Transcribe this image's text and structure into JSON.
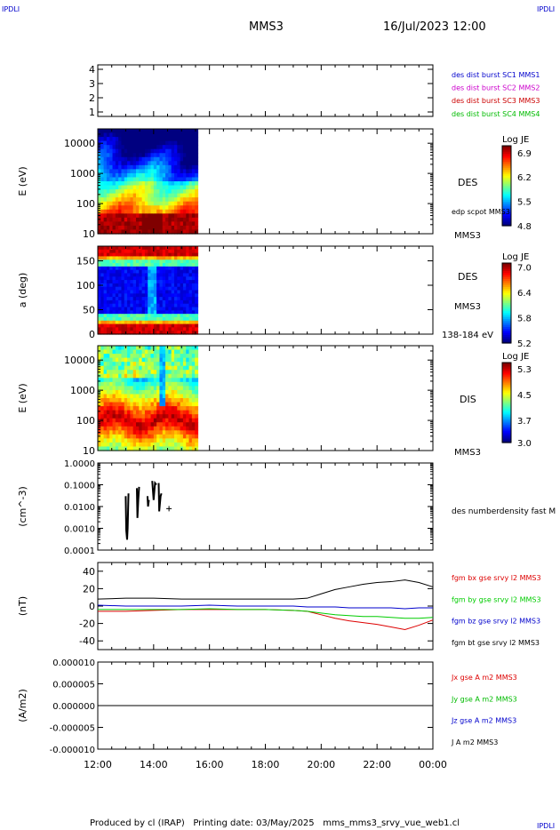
{
  "corners": {
    "top_left": "IPDLI",
    "top_right": "IPDLI",
    "bottom_right": "IPDLI",
    "color": "#0000cc"
  },
  "header": {
    "title": "MMS3",
    "datetime": "16/Jul/2023 12:00"
  },
  "footer": {
    "text": "Produced by cl (IRAP)   Printing date: 03/May/2025   mms_mms3_srvy_vue_web1.cl"
  },
  "time_axis": {
    "tick_labels": [
      "12:00",
      "14:00",
      "16:00",
      "18:00",
      "20:00",
      "22:00",
      "00:00"
    ],
    "range_hours": [
      12,
      24
    ]
  },
  "chart_data": [
    {
      "type": "table",
      "id": "burst",
      "yticks": [
        "1",
        "2",
        "3",
        "4"
      ],
      "legend": [
        {
          "label": "des dist burst SC1 MMS1",
          "color": "#0000cc"
        },
        {
          "label": "des dist burst SC2 MMS2",
          "color": "#cc00cc"
        },
        {
          "label": "des dist burst SC3 MMS3",
          "color": "#cc0000"
        },
        {
          "label": "des dist burst SC4 MMS4",
          "color": "#00bb00"
        }
      ]
    },
    {
      "type": "heatmap",
      "id": "des_energy",
      "ylabel": "E (eV)",
      "yscale": "log",
      "ylim": [
        10,
        30000
      ],
      "yticks": [
        "10",
        "100",
        "1000",
        "10000"
      ],
      "data_end_hour": 15.58,
      "side_labels": [
        "DES",
        "edp scpot MMS3",
        "MMS3"
      ],
      "colorbar": {
        "title": "Log JE",
        "ticks": [
          "6.9",
          "6.2",
          "5.5",
          "4.8"
        ],
        "range": [
          4.8,
          7.1
        ]
      }
    },
    {
      "type": "heatmap",
      "id": "des_pitch",
      "ylabel": "a (deg)",
      "ylim": [
        0,
        180
      ],
      "yticks": [
        "0",
        "50",
        "100",
        "150"
      ],
      "data_end_hour": 15.58,
      "side_labels": [
        "DES",
        "MMS3",
        "138-184 eV"
      ],
      "colorbar": {
        "title": "Log JE",
        "ticks": [
          "7.0",
          "6.4",
          "5.8",
          "5.2"
        ],
        "range": [
          5.2,
          7.1
        ]
      }
    },
    {
      "type": "heatmap",
      "id": "dis_energy",
      "ylabel": "E (eV)",
      "yscale": "log",
      "ylim": [
        10,
        30000
      ],
      "yticks": [
        "10",
        "100",
        "1000",
        "10000"
      ],
      "data_end_hour": 15.58,
      "side_labels": [
        "DIS",
        "MMS3"
      ],
      "colorbar": {
        "title": "Log JE",
        "ticks": [
          "5.3",
          "4.5",
          "3.7",
          "3.0"
        ],
        "range": [
          3.0,
          5.5
        ]
      }
    },
    {
      "type": "scatter",
      "id": "density",
      "ylabel": "(cm^-3)",
      "yscale": "log",
      "ylim": [
        0.0001,
        1.0
      ],
      "yticks": [
        "0.0001",
        "0.0010",
        "0.0100",
        "0.1000",
        "1.0000"
      ],
      "legend": [
        {
          "label": "des numberdensity fast M",
          "color": "#000000"
        }
      ],
      "segments": [
        {
          "x": [
            13.0,
            13.02,
            13.05,
            13.07,
            13.1
          ],
          "y": [
            0.03,
            0.0008,
            0.0003,
            0.001,
            0.04
          ]
        },
        {
          "x": [
            13.4,
            13.42,
            13.45,
            13.48
          ],
          "y": [
            0.07,
            0.003,
            0.02,
            0.08
          ]
        },
        {
          "x": [
            13.78,
            13.8,
            13.83
          ],
          "y": [
            0.03,
            0.01,
            0.02
          ]
        },
        {
          "x": [
            13.95,
            14.0,
            14.05,
            14.1
          ],
          "y": [
            0.15,
            0.02,
            0.12,
            0.1
          ]
        },
        {
          "x": [
            14.18,
            14.2,
            14.25,
            14.28
          ],
          "y": [
            0.12,
            0.006,
            0.03,
            0.04
          ]
        }
      ],
      "points": [
        {
          "x": 14.55,
          "y": 0.008
        }
      ]
    },
    {
      "type": "line",
      "id": "fgm",
      "ylabel": "(nT)",
      "ylim": [
        -50,
        50
      ],
      "yticks": [
        "-40",
        "-20",
        "0",
        "20",
        "40"
      ],
      "x": [
        12,
        13,
        14,
        15,
        16,
        17,
        18,
        19,
        19.5,
        20,
        20.5,
        21,
        21.5,
        22,
        22.5,
        23,
        23.5,
        24
      ],
      "series": [
        {
          "name": "fgm bx gse srvy l2 MMS3",
          "color": "#dd0000",
          "values": [
            -6,
            -6,
            -5,
            -4,
            -4,
            -4,
            -4,
            -5,
            -6,
            -10,
            -14,
            -17,
            -19,
            -21,
            -24,
            -27,
            -22,
            -16
          ]
        },
        {
          "name": "fgm by gse srvy l2 MMS3",
          "color": "#00cc00",
          "values": [
            -4,
            -4,
            -4,
            -4,
            -3,
            -4,
            -4,
            -5,
            -6,
            -8,
            -10,
            -11,
            -12,
            -12,
            -13,
            -14,
            -14,
            -13
          ]
        },
        {
          "name": "fgm bz gse srvy l2 MMS3",
          "color": "#0000cc",
          "values": [
            1,
            0,
            0,
            0,
            1,
            0,
            0,
            0,
            -1,
            -1,
            -1,
            -2,
            -2,
            -2,
            -2,
            -3,
            -2,
            -2
          ]
        },
        {
          "name": "fgm bt gse srvy l2 MMS3",
          "color": "#000000",
          "values": [
            8,
            9,
            9,
            8,
            8,
            8,
            8,
            8,
            9,
            14,
            19,
            22,
            25,
            27,
            28,
            30,
            27,
            22
          ]
        }
      ]
    },
    {
      "type": "line",
      "id": "current",
      "ylabel": "(A/m2)",
      "ylim": [
        -1e-05,
        1e-05
      ],
      "yticks": [
        "-0.000010",
        "-0.000005",
        "0.000000",
        "0.000005",
        "0.000010"
      ],
      "x": [
        12,
        24
      ],
      "series": [
        {
          "name": "Jx gse A m2 MMS3",
          "color": "#dd0000",
          "values": [
            0,
            0
          ]
        },
        {
          "name": "Jy gse A m2 MMS3",
          "color": "#00bb00",
          "values": [
            0,
            0
          ]
        },
        {
          "name": "Jz gse A m2 MMS3",
          "color": "#0000cc",
          "values": [
            0,
            0
          ]
        },
        {
          "name": "J A m2 MMS3",
          "color": "#000000",
          "values": [
            0,
            0
          ]
        }
      ]
    }
  ]
}
